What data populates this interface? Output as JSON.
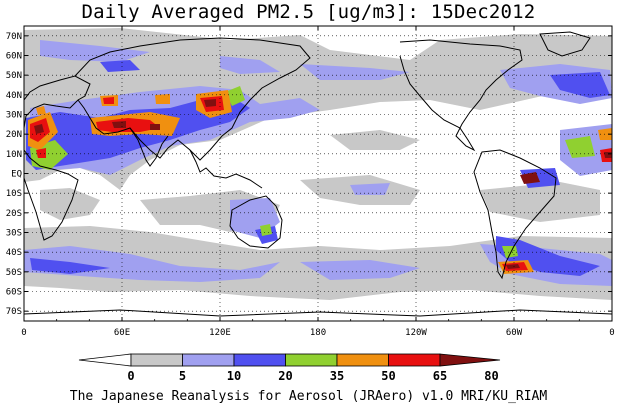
{
  "title": "Daily Averaged PM2.5 [ug/m3]: 15Dec2012",
  "credit": "The Japanese Reanalysis for Aerosol (JRAero) v1.0 MRI/KU_RIAM",
  "map": {
    "lat_ticks": [
      {
        "label": "70N",
        "lat": 70
      },
      {
        "label": "60N",
        "lat": 60
      },
      {
        "label": "50N",
        "lat": 50
      },
      {
        "label": "40N",
        "lat": 40
      },
      {
        "label": "30N",
        "lat": 30
      },
      {
        "label": "20N",
        "lat": 20
      },
      {
        "label": "10N",
        "lat": 10
      },
      {
        "label": "EQ",
        "lat": 0
      },
      {
        "label": "10S",
        "lat": -10
      },
      {
        "label": "20S",
        "lat": -20
      },
      {
        "label": "30S",
        "lat": -30
      },
      {
        "label": "40S",
        "lat": -40
      },
      {
        "label": "50S",
        "lat": -50
      },
      {
        "label": "60S",
        "lat": -60
      },
      {
        "label": "70S",
        "lat": -70
      }
    ],
    "lon_ticks": [
      {
        "label": "0",
        "lon": 0
      },
      {
        "label": "60E",
        "lon": 60
      },
      {
        "label": "120E",
        "lon": 120
      },
      {
        "label": "180",
        "lon": 180
      },
      {
        "label": "120W",
        "lon": 240
      },
      {
        "label": "60W",
        "lon": 300
      },
      {
        "label": "0",
        "lon": 360
      }
    ]
  },
  "colorbar": {
    "labels": [
      "0",
      "5",
      "10",
      "20",
      "35",
      "50",
      "65",
      "80"
    ],
    "colors": [
      "#ffffff",
      "#c8c8c8",
      "#a0a0f0",
      "#5050f0",
      "#90d030",
      "#f09010",
      "#e81010",
      "#801010"
    ],
    "under_color": "#ffffff",
    "over_color": "#801010"
  },
  "colors": {
    "gray": "#c8c8c8",
    "light_blue": "#a0a0f0",
    "blue": "#5050f0",
    "green": "#90d030",
    "orange": "#f09010",
    "red": "#e81010",
    "dark_red": "#801010"
  }
}
